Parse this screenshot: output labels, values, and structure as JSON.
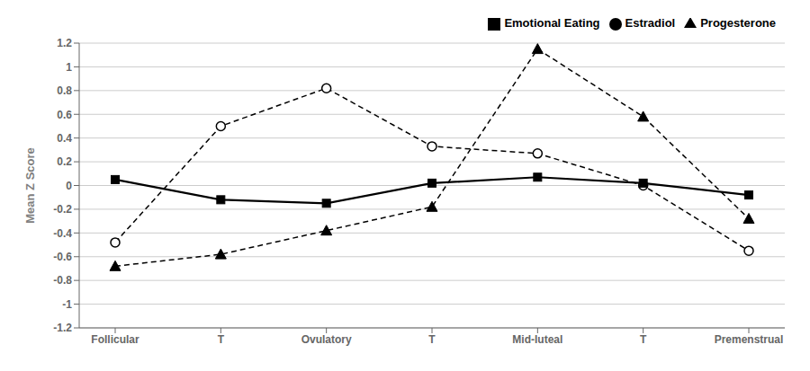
{
  "chart_data": {
    "type": "line",
    "ylabel": "Mean Z Score",
    "categories": [
      "Follicular",
      "T",
      "Ovulatory",
      "T",
      "Mid-luteal",
      "T",
      "Premenstrual"
    ],
    "series": [
      {
        "name": "Estradiol",
        "color": "#000000",
        "marker": "circle_open",
        "line_style": "dashed",
        "values": [
          -0.48,
          0.5,
          0.82,
          0.33,
          0.27,
          0.0,
          -0.55
        ]
      },
      {
        "name": "Progesterone",
        "color": "#000000",
        "marker": "triangle",
        "line_style": "dashed",
        "values": [
          -0.68,
          -0.58,
          -0.38,
          -0.18,
          1.15,
          0.58,
          -0.28
        ]
      },
      {
        "name": "Emotional Eating",
        "color": "#000000",
        "marker": "square",
        "line_style": "solid",
        "values": [
          0.05,
          -0.12,
          -0.15,
          0.02,
          0.07,
          0.02,
          -0.08
        ]
      }
    ],
    "ylim": [
      -1.2,
      1.2
    ],
    "yticks": [
      -1.2,
      -1,
      -0.8,
      -0.6,
      -0.4,
      -0.2,
      0,
      0.2,
      0.4,
      0.6,
      0.8,
      1,
      1.2
    ],
    "grid": true,
    "legend": "upper right"
  }
}
